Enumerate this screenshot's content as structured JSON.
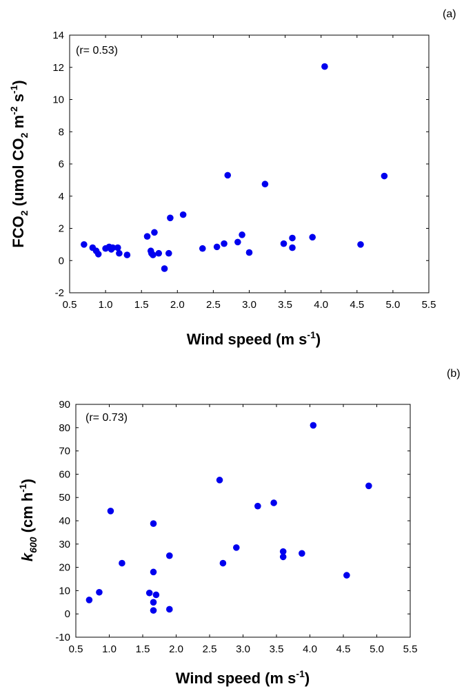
{
  "chart_data": [
    {
      "type": "scatter",
      "panel_label": "(a)",
      "annotation": "(r= 0.53)",
      "xlabel": {
        "main": "Wind speed (m s",
        "sup": "-1",
        "close": ")"
      },
      "ylabel": {
        "a": "FCO",
        "a_sub": "2",
        "b": " (umol CO",
        "b_sub": "2",
        "c": " m",
        "c_sup": "-2",
        "d": " s",
        "d_sup": "-1",
        "e": ")"
      },
      "xlim": [
        0.5,
        5.5
      ],
      "ylim": [
        -2,
        14
      ],
      "xticks": [
        "0.5",
        "1.0",
        "1.5",
        "2.0",
        "2.5",
        "3.0",
        "3.5",
        "4.0",
        "4.5",
        "5.0",
        "5.5"
      ],
      "yticks": [
        "-2",
        "0",
        "2",
        "4",
        "6",
        "8",
        "10",
        "12",
        "14"
      ],
      "marker_color": "#0000ee",
      "points": [
        {
          "x": 0.7,
          "y": 1.0
        },
        {
          "x": 0.82,
          "y": 0.8
        },
        {
          "x": 0.87,
          "y": 0.6
        },
        {
          "x": 0.9,
          "y": 0.4
        },
        {
          "x": 1.0,
          "y": 0.75
        },
        {
          "x": 1.05,
          "y": 0.85
        },
        {
          "x": 1.08,
          "y": 0.7
        },
        {
          "x": 1.1,
          "y": 0.8
        },
        {
          "x": 1.17,
          "y": 0.8
        },
        {
          "x": 1.19,
          "y": 0.45
        },
        {
          "x": 1.3,
          "y": 0.35
        },
        {
          "x": 1.58,
          "y": 1.5
        },
        {
          "x": 1.63,
          "y": 0.6
        },
        {
          "x": 1.64,
          "y": 0.45
        },
        {
          "x": 1.66,
          "y": 0.35
        },
        {
          "x": 1.68,
          "y": 1.75
        },
        {
          "x": 1.74,
          "y": 0.45
        },
        {
          "x": 1.82,
          "y": -0.5
        },
        {
          "x": 1.88,
          "y": 0.45
        },
        {
          "x": 1.9,
          "y": 2.65
        },
        {
          "x": 2.08,
          "y": 2.85
        },
        {
          "x": 2.35,
          "y": 0.75
        },
        {
          "x": 2.55,
          "y": 0.85
        },
        {
          "x": 2.65,
          "y": 1.05
        },
        {
          "x": 2.7,
          "y": 5.3
        },
        {
          "x": 2.84,
          "y": 1.15
        },
        {
          "x": 2.9,
          "y": 1.6
        },
        {
          "x": 3.0,
          "y": 0.5
        },
        {
          "x": 3.22,
          "y": 4.75
        },
        {
          "x": 3.48,
          "y": 1.05
        },
        {
          "x": 3.6,
          "y": 1.4
        },
        {
          "x": 3.6,
          "y": 0.8
        },
        {
          "x": 3.88,
          "y": 1.45
        },
        {
          "x": 4.05,
          "y": 12.05
        },
        {
          "x": 4.55,
          "y": 1.0
        },
        {
          "x": 4.88,
          "y": 5.25
        }
      ]
    },
    {
      "type": "scatter",
      "panel_label": "(b)",
      "annotation": "(r= 0.73)",
      "xlabel": {
        "main": "Wind speed (m s",
        "sup": "-1",
        "close": ")"
      },
      "ylabel": {
        "k": "k",
        "k_sub": "600",
        "rest": " (cm h",
        "sup": "-1",
        "close": ")"
      },
      "xlim": [
        0.5,
        5.5
      ],
      "ylim": [
        -10,
        90
      ],
      "xticks": [
        "0.5",
        "1.0",
        "1.5",
        "2.0",
        "2.5",
        "3.0",
        "3.5",
        "4.0",
        "4.5",
        "5.0",
        "5.5"
      ],
      "yticks": [
        "-10",
        "0",
        "10",
        "20",
        "30",
        "40",
        "50",
        "60",
        "70",
        "80",
        "90"
      ],
      "marker_color": "#0000ee",
      "points": [
        {
          "x": 0.7,
          "y": 6.0
        },
        {
          "x": 0.85,
          "y": 9.3
        },
        {
          "x": 1.02,
          "y": 44.2
        },
        {
          "x": 1.19,
          "y": 21.8
        },
        {
          "x": 1.6,
          "y": 9.0
        },
        {
          "x": 1.66,
          "y": 38.8
        },
        {
          "x": 1.66,
          "y": 18.0
        },
        {
          "x": 1.66,
          "y": 5.0
        },
        {
          "x": 1.66,
          "y": 1.5
        },
        {
          "x": 1.7,
          "y": 8.2
        },
        {
          "x": 1.9,
          "y": 25.0
        },
        {
          "x": 1.9,
          "y": 2.0
        },
        {
          "x": 2.65,
          "y": 57.5
        },
        {
          "x": 2.7,
          "y": 21.8
        },
        {
          "x": 2.9,
          "y": 28.5
        },
        {
          "x": 3.22,
          "y": 46.3
        },
        {
          "x": 3.46,
          "y": 47.7
        },
        {
          "x": 3.6,
          "y": 26.8
        },
        {
          "x": 3.6,
          "y": 24.5
        },
        {
          "x": 3.88,
          "y": 26.0
        },
        {
          "x": 4.05,
          "y": 81.0
        },
        {
          "x": 4.55,
          "y": 16.6
        },
        {
          "x": 4.88,
          "y": 55.0
        }
      ]
    }
  ]
}
